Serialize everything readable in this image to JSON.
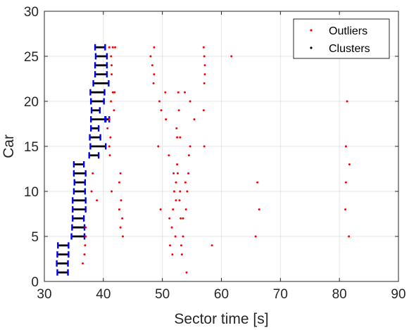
{
  "chart_data": {
    "type": "scatter",
    "xlabel": "Sector time [s]",
    "ylabel": "Car",
    "xlim": [
      30,
      90
    ],
    "ylim": [
      0,
      30
    ],
    "xticks": [
      30,
      40,
      50,
      60,
      70,
      80,
      90
    ],
    "yticks": [
      0,
      5,
      10,
      15,
      20,
      25,
      30
    ],
    "grid": true,
    "legend_position": "top-right",
    "legend": [
      {
        "label": "Outliers",
        "color": "#ff0000"
      },
      {
        "label": "Clusters",
        "color": "#000000"
      }
    ],
    "colors": {
      "outlier": "#ff0000",
      "cluster_line": "#000000",
      "cluster_cap": "#0000ff"
    },
    "clusters": [
      {
        "car": 1,
        "x0": 32.2,
        "x1": 34.0
      },
      {
        "car": 2,
        "x0": 32.1,
        "x1": 34.0
      },
      {
        "car": 3,
        "x0": 32.2,
        "x1": 34.1
      },
      {
        "car": 4,
        "x0": 32.3,
        "x1": 34.1
      },
      {
        "car": 5,
        "x0": 34.6,
        "x1": 36.8
      },
      {
        "car": 6,
        "x0": 34.7,
        "x1": 36.8
      },
      {
        "car": 7,
        "x0": 34.8,
        "x1": 36.7
      },
      {
        "car": 8,
        "x0": 34.8,
        "x1": 37.0
      },
      {
        "car": 9,
        "x0": 34.8,
        "x1": 37.0
      },
      {
        "car": 10,
        "x0": 35.0,
        "x1": 36.9
      },
      {
        "car": 11,
        "x0": 35.1,
        "x1": 36.9
      },
      {
        "car": 12,
        "x0": 35.0,
        "x1": 37.0
      },
      {
        "car": 13,
        "x0": 35.0,
        "x1": 36.7
      },
      {
        "car": 14,
        "x0": 37.6,
        "x1": 39.2
      },
      {
        "car": 15,
        "x0": 37.8,
        "x1": 40.4
      },
      {
        "car": 16,
        "x0": 37.7,
        "x1": 39.5
      },
      {
        "car": 17,
        "x0": 37.9,
        "x1": 39.2
      },
      {
        "car": 18,
        "x0": 37.9,
        "x1": 40.3
      },
      {
        "car": 19,
        "x0": 38.0,
        "x1": 39.4
      },
      {
        "car": 20,
        "x0": 37.9,
        "x1": 40.1
      },
      {
        "car": 21,
        "x0": 37.8,
        "x1": 40.2
      },
      {
        "car": 22,
        "x0": 38.3,
        "x1": 40.9
      },
      {
        "car": 23,
        "x0": 38.6,
        "x1": 40.6
      },
      {
        "car": 24,
        "x0": 38.6,
        "x1": 40.6
      },
      {
        "car": 25,
        "x0": 38.7,
        "x1": 40.6
      },
      {
        "car": 26,
        "x0": 38.6,
        "x1": 40.3
      }
    ],
    "extra_cluster": {
      "car": 18,
      "x0": 40.4,
      "x1": 41.0
    },
    "outliers": [
      [
        36.8,
        3
      ],
      [
        36.5,
        2
      ],
      [
        36.9,
        4
      ],
      [
        37.0,
        5
      ],
      [
        37.0,
        6
      ],
      [
        38.9,
        9
      ],
      [
        38.0,
        10
      ],
      [
        38.2,
        12
      ],
      [
        41.4,
        10
      ],
      [
        41.1,
        14
      ],
      [
        41.0,
        15
      ],
      [
        41.2,
        16
      ],
      [
        40.7,
        17
      ],
      [
        41.0,
        18
      ],
      [
        41.8,
        19
      ],
      [
        41.3,
        20
      ],
      [
        41.6,
        21
      ],
      [
        41.9,
        21
      ],
      [
        41.4,
        23
      ],
      [
        41.4,
        24
      ],
      [
        41.3,
        25
      ],
      [
        41.0,
        26
      ],
      [
        41.6,
        26
      ],
      [
        42.0,
        26
      ],
      [
        42.7,
        11
      ],
      [
        42.9,
        12
      ],
      [
        43.0,
        9
      ],
      [
        42.7,
        8
      ],
      [
        43.2,
        7
      ],
      [
        42.9,
        6
      ],
      [
        43.3,
        5
      ],
      [
        48.6,
        26
      ],
      [
        48.0,
        25
      ],
      [
        48.3,
        24
      ],
      [
        48.6,
        23
      ],
      [
        48.5,
        22
      ],
      [
        49.3,
        15
      ],
      [
        49.5,
        20
      ],
      [
        49.8,
        19
      ],
      [
        49.7,
        8
      ],
      [
        50.5,
        21
      ],
      [
        50.6,
        18
      ],
      [
        51.1,
        14
      ],
      [
        51.3,
        4
      ],
      [
        51.7,
        3
      ],
      [
        51.2,
        7
      ],
      [
        51.6,
        6
      ],
      [
        51.8,
        8
      ],
      [
        51.9,
        12
      ],
      [
        52.0,
        10
      ],
      [
        52.3,
        11
      ],
      [
        52.3,
        9
      ],
      [
        52.2,
        5
      ],
      [
        52.6,
        12
      ],
      [
        52.5,
        13
      ],
      [
        52.4,
        17
      ],
      [
        52.5,
        16
      ],
      [
        52.7,
        21
      ],
      [
        52.8,
        19
      ],
      [
        52.9,
        9
      ],
      [
        53.0,
        10
      ],
      [
        53.0,
        16
      ],
      [
        53.1,
        7
      ],
      [
        53.2,
        4
      ],
      [
        53.3,
        3
      ],
      [
        53.5,
        5
      ],
      [
        53.5,
        7
      ],
      [
        53.8,
        21
      ],
      [
        53.9,
        11
      ],
      [
        54.0,
        8
      ],
      [
        54.1,
        1
      ],
      [
        54.2,
        10
      ],
      [
        54.4,
        12
      ],
      [
        54.5,
        14
      ],
      [
        54.7,
        15
      ],
      [
        54.7,
        20
      ],
      [
        55.4,
        18
      ],
      [
        57.0,
        19
      ],
      [
        57.1,
        15
      ],
      [
        57.0,
        26
      ],
      [
        57.1,
        25
      ],
      [
        57.2,
        24
      ],
      [
        57.2,
        23
      ],
      [
        57.1,
        22
      ],
      [
        58.4,
        4
      ],
      [
        61.7,
        25
      ],
      [
        65.8,
        5
      ],
      [
        66.1,
        11
      ],
      [
        66.4,
        8
      ],
      [
        81.0,
        8
      ],
      [
        81.1,
        15
      ],
      [
        81.1,
        11
      ],
      [
        81.3,
        20
      ],
      [
        81.6,
        5
      ],
      [
        81.7,
        13
      ]
    ]
  }
}
